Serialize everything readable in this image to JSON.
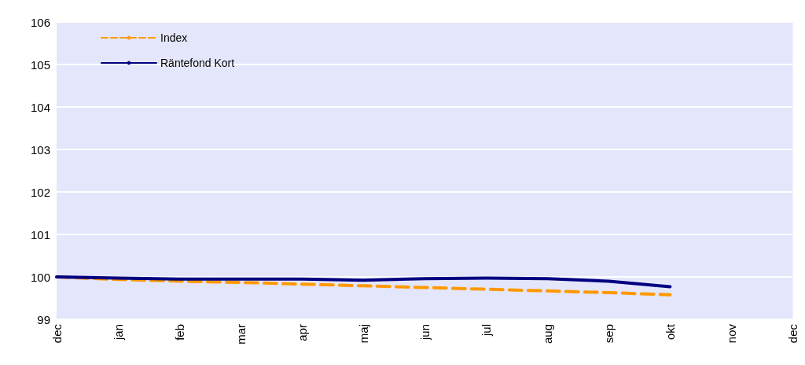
{
  "chart_data": {
    "type": "line",
    "categories": [
      "dec",
      "jan",
      "feb",
      "mar",
      "apr",
      "maj",
      "jun",
      "jul",
      "aug",
      "sep",
      "okt",
      "nov",
      "dec"
    ],
    "series": [
      {
        "name": "Index",
        "color": "#ff9900",
        "line_style": "dashed",
        "values": [
          100,
          99.94,
          99.9,
          99.87,
          99.83,
          99.79,
          99.75,
          99.71,
          99.67,
          99.63,
          99.58,
          null,
          null
        ]
      },
      {
        "name": "Räntefond Kort",
        "color": "#000080",
        "line_style": "solid",
        "values": [
          100,
          99.97,
          99.95,
          99.95,
          99.95,
          99.92,
          99.96,
          99.97,
          99.96,
          99.9,
          99.77,
          null,
          null
        ]
      }
    ],
    "ylim": [
      99,
      106
    ],
    "yticks": [
      99,
      100,
      101,
      102,
      103,
      104,
      105,
      106
    ],
    "grid": "y",
    "legend": "top left",
    "marker": "none"
  }
}
